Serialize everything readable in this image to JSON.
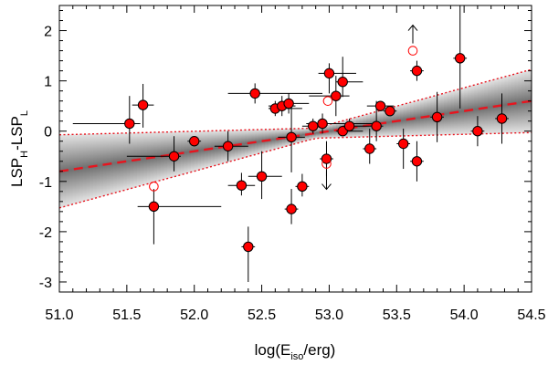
{
  "chart_data": {
    "type": "scatter",
    "xlabel": {
      "prefix": "log(E",
      "sub": "iso",
      "suffix": "/erg)"
    },
    "ylabel": {
      "a": "LSP",
      "a_sub": "H",
      "mid": "-LSP",
      "b_sub": "L"
    },
    "xlim": [
      51.0,
      54.5
    ],
    "ylim": [
      -3.2,
      2.5
    ],
    "xticks": [
      51.0,
      51.5,
      52.0,
      52.5,
      53.0,
      53.5,
      54.0,
      54.5
    ],
    "xtick_labels": [
      "51.0",
      "51.5",
      "52.0",
      "52.5",
      "53.0",
      "53.5",
      "54.0",
      "54.5"
    ],
    "yticks": [
      -3,
      -2,
      -1,
      0,
      1,
      2
    ],
    "ytick_labels": [
      "-3",
      "-2",
      "-1",
      "0",
      "1",
      "2"
    ],
    "fit": {
      "slope": 0.4,
      "intercept_at_51": -0.8,
      "x_pivot": 52.9,
      "band_min": 0.1,
      "band_coef": 0.33
    },
    "colors": {
      "points": "#ff0000",
      "fit_line": "#e8141e",
      "band_dark": "#707070",
      "band_light": "#e4e4e4",
      "errorbar": "#000000"
    },
    "points": [
      {
        "x": 51.52,
        "y": 0.15,
        "xerr": [
          0.42,
          0.08
        ],
        "yerr": [
          0.4,
          0.55
        ]
      },
      {
        "x": 51.62,
        "y": 0.52,
        "xerr": [
          0.08,
          0.08
        ],
        "yerr": [
          0.45,
          0.42
        ]
      },
      {
        "x": 51.7,
        "y": -1.5,
        "xerr": [
          0.12,
          0.5
        ],
        "yerr": [
          0.75,
          0.35
        ]
      },
      {
        "x": 51.85,
        "y": -0.5,
        "xerr": [
          0.35,
          0.05
        ],
        "yerr": [
          0.3,
          0.4
        ]
      },
      {
        "x": 52.0,
        "y": -0.2,
        "xerr": [
          0.05,
          0.05
        ],
        "yerr": [
          0.1,
          0.1
        ]
      },
      {
        "x": 52.25,
        "y": -0.3,
        "xerr": [
          0.1,
          0.15
        ],
        "yerr": [
          0.3,
          0.3
        ]
      },
      {
        "x": 52.35,
        "y": -1.08,
        "xerr": [
          0.1,
          0.1
        ],
        "yerr": [
          0.2,
          0.25
        ]
      },
      {
        "x": 52.4,
        "y": -2.3,
        "xerr": [
          0.05,
          0.05
        ],
        "yerr": [
          0.7,
          0.4
        ]
      },
      {
        "x": 52.45,
        "y": 0.75,
        "xerr": [
          0.2,
          0.5
        ],
        "yerr": [
          0.2,
          0.2
        ]
      },
      {
        "x": 52.5,
        "y": -0.9,
        "xerr": [
          0.1,
          0.15
        ],
        "yerr": [
          0.45,
          0.5
        ]
      },
      {
        "x": 52.6,
        "y": 0.45,
        "xerr": [
          0.05,
          0.2
        ],
        "yerr": [
          0.15,
          0.15
        ]
      },
      {
        "x": 52.65,
        "y": 0.5,
        "xerr": [
          0.1,
          0.1
        ],
        "yerr": [
          0.2,
          0.2
        ]
      },
      {
        "x": 52.7,
        "y": 0.55,
        "xerr": [
          0.05,
          0.15
        ],
        "yerr": [
          0.2,
          0.2
        ]
      },
      {
        "x": 52.72,
        "y": -0.12,
        "xerr": [
          0.1,
          0.1
        ],
        "yerr": [
          0.7,
          0.65
        ]
      },
      {
        "x": 52.72,
        "y": -1.55,
        "xerr": [
          0.05,
          0.05
        ],
        "yerr": [
          0.3,
          0.4
        ]
      },
      {
        "x": 52.8,
        "y": -1.1,
        "xerr": [
          0.05,
          0.05
        ],
        "yerr": [
          0.2,
          0.25
        ]
      },
      {
        "x": 52.88,
        "y": 0.1,
        "xerr": [
          0.08,
          0.08
        ],
        "yerr": [
          0.15,
          0.15
        ]
      },
      {
        "x": 52.95,
        "y": 0.15,
        "xerr": [
          0.12,
          0.4
        ],
        "yerr": [
          0.2,
          0.2
        ]
      },
      {
        "x": 52.98,
        "y": -0.55,
        "xerr": [
          0.05,
          0.05
        ],
        "yerr": [
          0.35,
          0.35
        ]
      },
      {
        "x": 53.0,
        "y": 1.15,
        "xerr": [
          0.08,
          0.2
        ],
        "yerr": [
          0.4,
          0.2
        ]
      },
      {
        "x": 53.05,
        "y": 0.7,
        "xerr": [
          0.2,
          0.1
        ],
        "yerr": [
          0.4,
          0.4
        ]
      },
      {
        "x": 53.1,
        "y": 0.98,
        "xerr": [
          0.05,
          0.15
        ],
        "yerr": [
          0.3,
          0.5
        ]
      },
      {
        "x": 53.1,
        "y": 0.0,
        "xerr": [
          0.05,
          0.15
        ],
        "yerr": [
          0.1,
          0.1
        ]
      },
      {
        "x": 53.15,
        "y": 0.1,
        "xerr": [
          0.05,
          0.15
        ],
        "yerr": [
          0.1,
          0.15
        ]
      },
      {
        "x": 53.3,
        "y": -0.35,
        "xerr": [
          0.05,
          0.05
        ],
        "yerr": [
          0.3,
          0.4
        ]
      },
      {
        "x": 53.35,
        "y": 0.1,
        "xerr": [
          0.05,
          0.05
        ],
        "yerr": [
          0.3,
          0.5
        ]
      },
      {
        "x": 53.38,
        "y": 0.5,
        "xerr": [
          0.1,
          0.1
        ],
        "yerr": [
          0.1,
          0.1
        ]
      },
      {
        "x": 53.45,
        "y": 0.4,
        "xerr": [
          0.05,
          0.05
        ],
        "yerr": [
          0.1,
          0.1
        ]
      },
      {
        "x": 53.55,
        "y": -0.25,
        "xerr": [
          0.05,
          0.05
        ],
        "yerr": [
          0.5,
          0.3
        ]
      },
      {
        "x": 53.65,
        "y": 1.2,
        "xerr": [
          0.05,
          0.05
        ],
        "yerr": [
          0.2,
          0.2
        ]
      },
      {
        "x": 53.65,
        "y": -0.6,
        "xerr": [
          0.05,
          0.05
        ],
        "yerr": [
          0.4,
          0.4
        ]
      },
      {
        "x": 53.8,
        "y": 0.28,
        "xerr": [
          0.05,
          0.05
        ],
        "yerr": [
          0.5,
          0.5
        ]
      },
      {
        "x": 53.97,
        "y": 1.45,
        "xerr": [
          0.05,
          0.05
        ],
        "yerr": [
          1.0,
          1.1
        ]
      },
      {
        "x": 54.1,
        "y": 0.0,
        "xerr": [
          0.05,
          0.05
        ],
        "yerr": [
          0.3,
          0.3
        ]
      },
      {
        "x": 54.28,
        "y": 0.25,
        "xerr": [
          0.05,
          0.05
        ],
        "yerr": [
          0.5,
          0.5
        ]
      }
    ],
    "limits": [
      {
        "x": 51.7,
        "y": -1.1,
        "arrow": "none"
      },
      {
        "x": 52.98,
        "y": -0.65,
        "arrow": "down"
      },
      {
        "x": 52.99,
        "y": 0.6,
        "arrow": "none"
      },
      {
        "x": 53.62,
        "y": 1.6,
        "arrow": "up"
      }
    ]
  }
}
